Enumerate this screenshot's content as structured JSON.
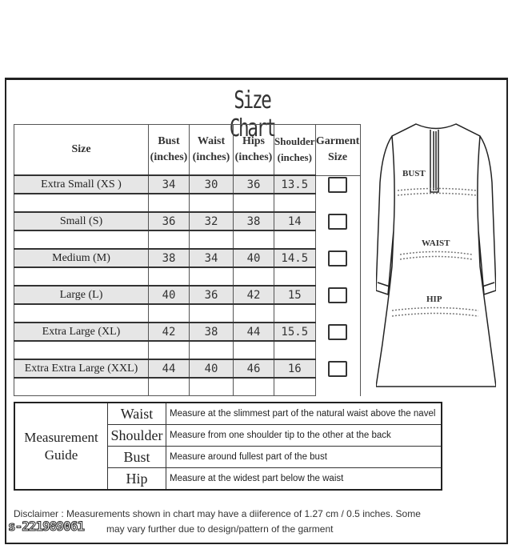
{
  "title": "Size Chart",
  "size_table": {
    "headers": [
      {
        "line1": "Size",
        "line2": ""
      },
      {
        "line1": "Bust",
        "line2": "(inches)"
      },
      {
        "line1": "Waist",
        "line2": "(inches)"
      },
      {
        "line1": "Hips",
        "line2": "(inches)"
      },
      {
        "line1": "Shoulder",
        "line2": "(inches)"
      },
      {
        "line1": "Garment",
        "line2": "Size"
      }
    ],
    "rows": [
      {
        "size": "Extra Small  (XS )",
        "bust": "34",
        "waist": "30",
        "hips": "36",
        "shoulder": "13.5"
      },
      {
        "size": "Small  (S)",
        "bust": "36",
        "waist": "32",
        "hips": "38",
        "shoulder": "14"
      },
      {
        "size": "Medium (M)",
        "bust": "38",
        "waist": "34",
        "hips": "40",
        "shoulder": "14.5"
      },
      {
        "size": "Large (L)",
        "bust": "40",
        "waist": "36",
        "hips": "42",
        "shoulder": "15"
      },
      {
        "size": "Extra Large (XL)",
        "bust": "42",
        "waist": "38",
        "hips": "44",
        "shoulder": "15.5"
      },
      {
        "size": "Extra Extra Large (XXL)",
        "bust": "44",
        "waist": "40",
        "hips": "46",
        "shoulder": "16"
      }
    ]
  },
  "diagram": {
    "labels": {
      "bust": "BUST",
      "waist": "WAIST",
      "hip": "HIP"
    }
  },
  "guide": {
    "label_line1": "Measurement",
    "label_line2": "Guide",
    "items": [
      {
        "key": "Waist",
        "desc": "Measure at the slimmest part of the natural waist above the navel"
      },
      {
        "key": "Shoulder",
        "desc": "Measure from one shoulder tip to the other at the back"
      },
      {
        "key": "Bust",
        "desc": "Measure around fullest part of the bust"
      },
      {
        "key": "Hip",
        "desc": "Measure at the widest part below the waist"
      }
    ]
  },
  "disclaimer": {
    "line1": "Disclaimer : Measurements  shown  in  chart may have  a  diiference of 1.27 cm / 0.5 inches. Some",
    "line2": "may vary further due to design/pattern of the garment"
  },
  "watermark": "s-221989061"
}
